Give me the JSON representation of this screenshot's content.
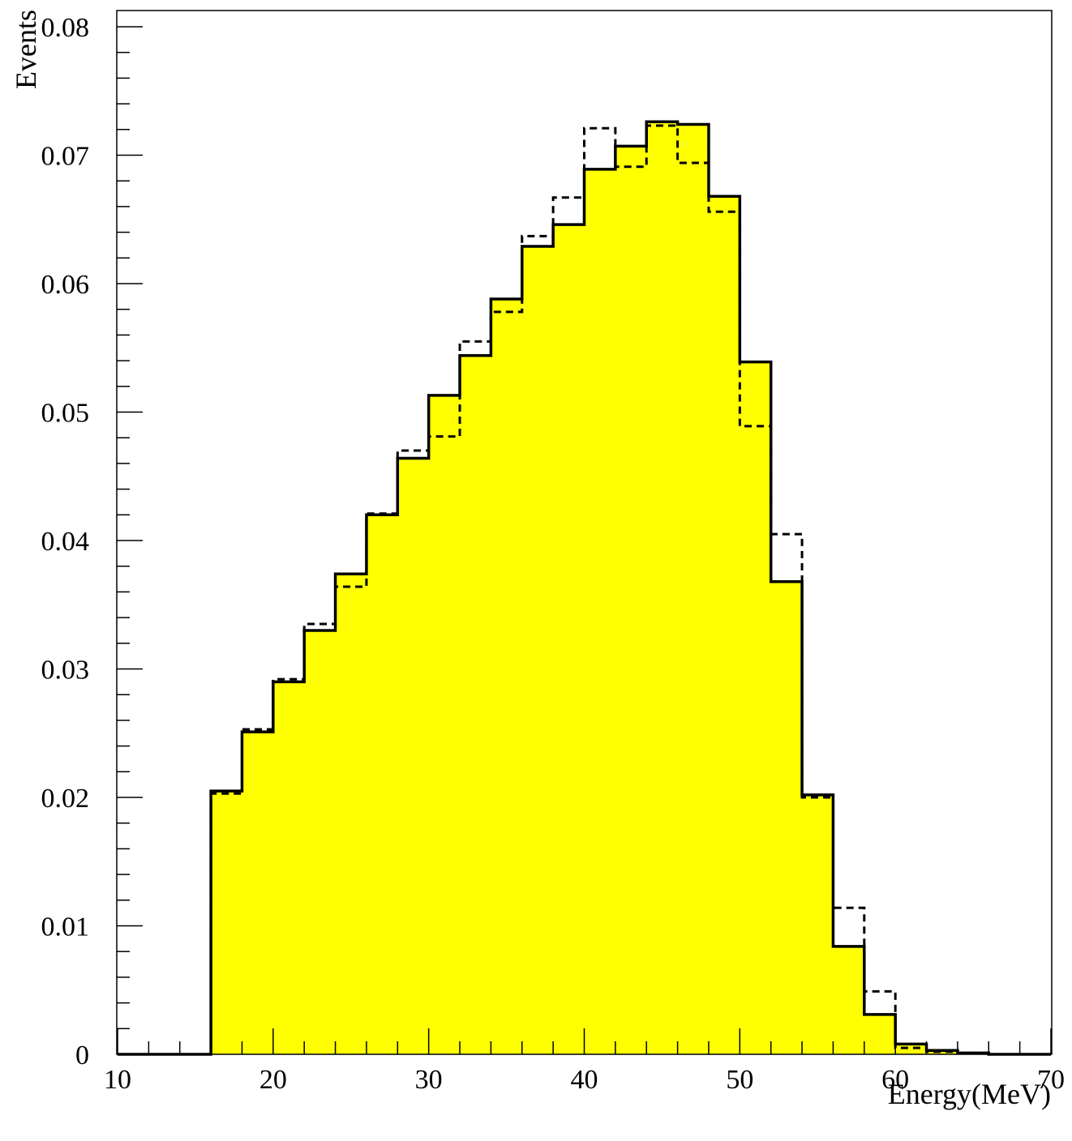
{
  "chart_data": {
    "type": "histogram",
    "xlabel": "Energy(MeV)",
    "ylabel": "Events",
    "xlim": [
      10,
      70
    ],
    "ylim": [
      0,
      0.08
    ],
    "bin_width": 2,
    "x_ticks": [
      10,
      20,
      30,
      40,
      50,
      60,
      70
    ],
    "x_tick_labels": [
      "10",
      "20",
      "30",
      "40",
      "50",
      "60",
      "70"
    ],
    "y_ticks": [
      0,
      0.01,
      0.02,
      0.03,
      0.04,
      0.05,
      0.06,
      0.07,
      0.08
    ],
    "y_tick_labels": [
      "0",
      "0.01",
      "0.02",
      "0.03",
      "0.04",
      "0.05",
      "0.06",
      "0.07",
      "0.08"
    ],
    "bin_edges": [
      10,
      12,
      14,
      16,
      18,
      20,
      22,
      24,
      26,
      28,
      30,
      32,
      34,
      36,
      38,
      40,
      42,
      44,
      46,
      48,
      50,
      52,
      54,
      56,
      58,
      60,
      62,
      64,
      66,
      68,
      70
    ],
    "series": [
      {
        "style": "solid-filled",
        "fill": "#ffff00",
        "line": "#000000",
        "values": [
          0,
          0,
          0,
          0.0205,
          0.0251,
          0.029,
          0.033,
          0.0374,
          0.042,
          0.0464,
          0.0513,
          0.0544,
          0.0588,
          0.0629,
          0.0646,
          0.0689,
          0.0707,
          0.0726,
          0.0724,
          0.0668,
          0.0539,
          0.0368,
          0.0202,
          0.0084,
          0.0031,
          0.0008,
          0.0003,
          0.0001,
          0,
          0
        ]
      },
      {
        "style": "dashed",
        "line": "#000000",
        "values": [
          0,
          0,
          0,
          0.0203,
          0.0253,
          0.0292,
          0.0335,
          0.0364,
          0.0421,
          0.047,
          0.0481,
          0.0555,
          0.0578,
          0.0637,
          0.0667,
          0.0721,
          0.0691,
          0.0723,
          0.0694,
          0.0656,
          0.0489,
          0.0405,
          0.02,
          0.0114,
          0.0049,
          0.0005,
          0.0002,
          0.0001,
          0,
          0
        ]
      }
    ]
  }
}
